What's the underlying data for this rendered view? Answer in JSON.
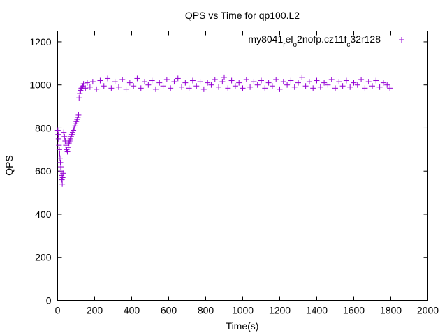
{
  "chart_data": {
    "type": "scatter",
    "title": "QPS vs Time for qp100.L2",
    "xlabel": "Time(s)",
    "ylabel": "QPS",
    "xlim": [
      0,
      2000
    ],
    "ylim": [
      0,
      1250
    ],
    "xticks": [
      0,
      200,
      400,
      600,
      800,
      1000,
      1200,
      1400,
      1600,
      1800,
      2000
    ],
    "yticks": [
      0,
      200,
      400,
      600,
      800,
      1000,
      1200
    ],
    "grid": false,
    "legend_position": "top-right",
    "series": [
      {
        "name_parts": [
          {
            "text": "my8041",
            "sub": false
          },
          {
            "text": "r",
            "sub": true
          },
          {
            "text": "el",
            "sub": false
          },
          {
            "text": "o",
            "sub": true
          },
          {
            "text": "2nofp.cz11f",
            "sub": false
          },
          {
            "text": "c",
            "sub": true
          },
          {
            "text": "32r128",
            "sub": false
          }
        ],
        "color": "#9400d3",
        "marker": "plus",
        "points": [
          [
            1,
            790
          ],
          [
            3,
            770
          ],
          [
            5,
            750
          ],
          [
            7,
            720
          ],
          [
            9,
            700
          ],
          [
            11,
            680
          ],
          [
            13,
            660
          ],
          [
            15,
            640
          ],
          [
            17,
            620
          ],
          [
            19,
            600
          ],
          [
            21,
            580
          ],
          [
            23,
            560
          ],
          [
            25,
            540
          ],
          [
            27,
            570
          ],
          [
            29,
            590
          ],
          [
            33,
            780
          ],
          [
            37,
            760
          ],
          [
            41,
            740
          ],
          [
            45,
            720
          ],
          [
            49,
            700
          ],
          [
            53,
            690
          ],
          [
            57,
            710
          ],
          [
            61,
            730
          ],
          [
            65,
            740
          ],
          [
            69,
            750
          ],
          [
            73,
            760
          ],
          [
            77,
            770
          ],
          [
            81,
            780
          ],
          [
            85,
            790
          ],
          [
            89,
            800
          ],
          [
            93,
            810
          ],
          [
            97,
            820
          ],
          [
            101,
            830
          ],
          [
            105,
            840
          ],
          [
            109,
            850
          ],
          [
            113,
            860
          ],
          [
            116,
            940
          ],
          [
            120,
            960
          ],
          [
            124,
            975
          ],
          [
            128,
            985
          ],
          [
            132,
            990
          ],
          [
            136,
            995
          ],
          [
            140,
            1005
          ],
          [
            150,
            985
          ],
          [
            160,
            1010
          ],
          [
            175,
            990
          ],
          [
            190,
            1015
          ],
          [
            210,
            980
          ],
          [
            230,
            1020
          ],
          [
            250,
            995
          ],
          [
            270,
            1030
          ],
          [
            290,
            985
          ],
          [
            310,
            1015
          ],
          [
            330,
            990
          ],
          [
            350,
            1025
          ],
          [
            370,
            980
          ],
          [
            390,
            1010
          ],
          [
            410,
            995
          ],
          [
            430,
            1030
          ],
          [
            450,
            985
          ],
          [
            470,
            1015
          ],
          [
            490,
            1000
          ],
          [
            510,
            1020
          ],
          [
            530,
            980
          ],
          [
            550,
            1010
          ],
          [
            570,
            995
          ],
          [
            590,
            1025
          ],
          [
            610,
            985
          ],
          [
            630,
            1015
          ],
          [
            650,
            1030
          ],
          [
            670,
            990
          ],
          [
            690,
            1010
          ],
          [
            710,
            985
          ],
          [
            730,
            1020
          ],
          [
            750,
            995
          ],
          [
            770,
            1015
          ],
          [
            790,
            980
          ],
          [
            810,
            1010
          ],
          [
            830,
            1000
          ],
          [
            850,
            1025
          ],
          [
            870,
            990
          ],
          [
            890,
            1015
          ],
          [
            900,
            1035
          ],
          [
            920,
            985
          ],
          [
            940,
            1020
          ],
          [
            960,
            995
          ],
          [
            980,
            1010
          ],
          [
            1000,
            985
          ],
          [
            1020,
            1025
          ],
          [
            1040,
            990
          ],
          [
            1060,
            1015
          ],
          [
            1080,
            1000
          ],
          [
            1100,
            1020
          ],
          [
            1120,
            985
          ],
          [
            1140,
            1010
          ],
          [
            1160,
            995
          ],
          [
            1180,
            1025
          ],
          [
            1200,
            980
          ],
          [
            1220,
            1015
          ],
          [
            1240,
            1000
          ],
          [
            1260,
            1020
          ],
          [
            1280,
            990
          ],
          [
            1300,
            1010
          ],
          [
            1320,
            1035
          ],
          [
            1340,
            995
          ],
          [
            1360,
            1015
          ],
          [
            1380,
            985
          ],
          [
            1400,
            1020
          ],
          [
            1420,
            990
          ],
          [
            1440,
            1010
          ],
          [
            1460,
            1000
          ],
          [
            1480,
            1025
          ],
          [
            1500,
            985
          ],
          [
            1520,
            1015
          ],
          [
            1540,
            995
          ],
          [
            1560,
            1020
          ],
          [
            1580,
            990
          ],
          [
            1600,
            1010
          ],
          [
            1620,
            1000
          ],
          [
            1640,
            1025
          ],
          [
            1660,
            985
          ],
          [
            1680,
            1015
          ],
          [
            1700,
            995
          ],
          [
            1720,
            1020
          ],
          [
            1740,
            990
          ],
          [
            1760,
            1010
          ],
          [
            1780,
            1000
          ],
          [
            1795,
            985
          ]
        ]
      }
    ]
  }
}
